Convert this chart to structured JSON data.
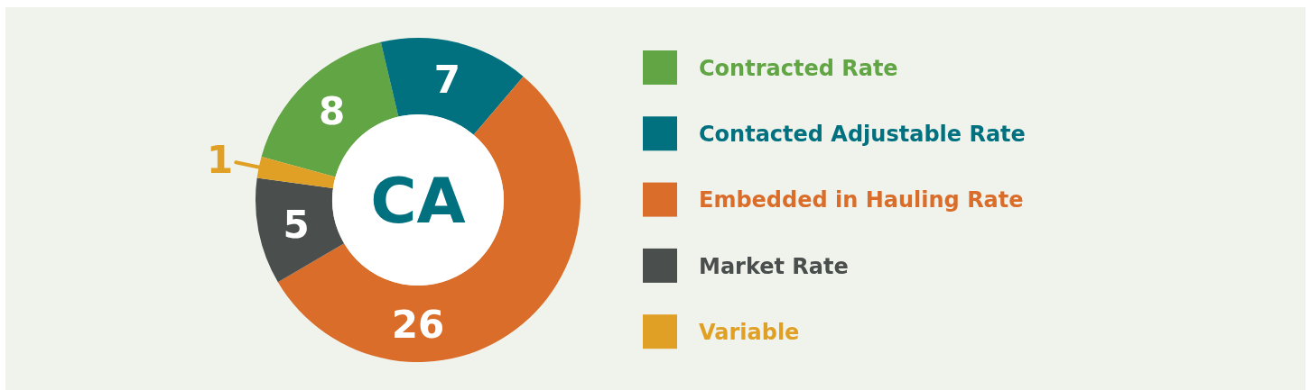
{
  "chart_data": {
    "type": "donut",
    "title": "CA",
    "categories": [
      "Contracted Rate",
      "Contacted Adjustable Rate",
      "Embedded in Hauling Rate",
      "Market Rate",
      "Variable"
    ],
    "values": [
      8,
      7,
      26,
      5,
      1
    ],
    "colors": [
      "#62a544",
      "#02717f",
      "#da6d2a",
      "#4a4f4d",
      "#e0a026"
    ],
    "data_labels": true,
    "legend": "right"
  }
}
